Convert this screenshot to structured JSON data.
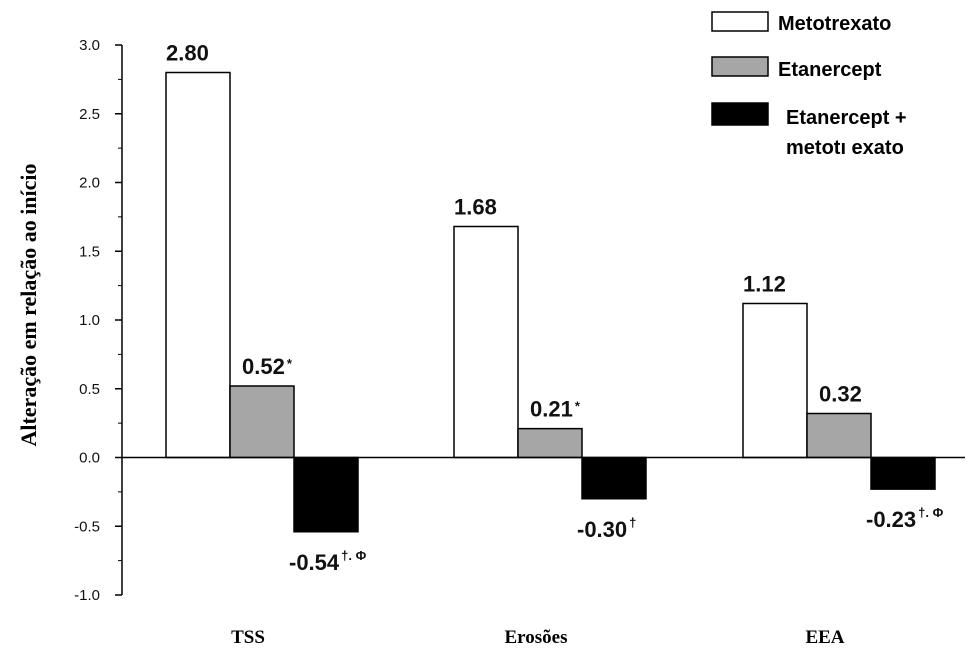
{
  "chart_data": {
    "type": "bar",
    "ylabel": "Alteração em relação ao início",
    "xlabel": "",
    "ylim": [
      -1.0,
      3.0
    ],
    "yticks": [
      "3.0",
      "2.5",
      "2.0",
      "1.5",
      "1.0",
      "0.5",
      "0.0",
      "-0.5",
      "-1.0"
    ],
    "ytick_values": [
      3.0,
      2.5,
      2.0,
      1.5,
      1.0,
      0.5,
      0.0,
      -0.5,
      -1.0
    ],
    "categories": [
      "TSS",
      "Erosões",
      "EEA"
    ],
    "legend_position": "top-right",
    "series": [
      {
        "name": "Metotrexato",
        "color": "#ffffff",
        "values": [
          2.8,
          1.68,
          1.12
        ],
        "labels": [
          "2.80",
          "1.68",
          "1.12"
        ],
        "marks": [
          "",
          "",
          ""
        ]
      },
      {
        "name": "Etanercept",
        "color": "#a6a6a6",
        "values": [
          0.52,
          0.21,
          0.32
        ],
        "labels": [
          "0.52",
          "0.21",
          "0.32"
        ],
        "marks": [
          "*",
          "*",
          ""
        ]
      },
      {
        "name": "Etanercept + metotı exato",
        "legend_lines": [
          "Etanercept +",
          "metotı exato"
        ],
        "color": "#000000",
        "values": [
          -0.54,
          -0.3,
          -0.23
        ],
        "labels": [
          "-0.54",
          "-0.30",
          "-0.23"
        ],
        "marks": [
          "†. Φ",
          "†",
          "†. Φ"
        ]
      }
    ]
  }
}
